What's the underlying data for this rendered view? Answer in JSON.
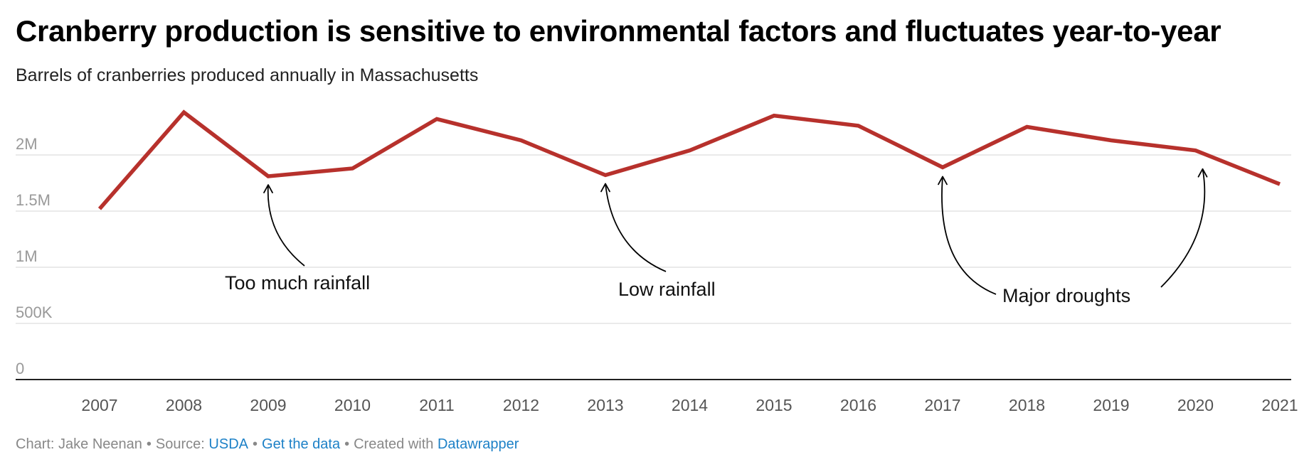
{
  "header": {
    "title": "Cranberry production is sensitive to environmental factors and fluctuates year-to-year",
    "subtitle": "Barrels of cranberries produced annually in Massachusetts"
  },
  "footer": {
    "chart_prefix": "Chart: ",
    "author": "Jake Neenan",
    "source_prefix": "Source:",
    "source_link": "USDA",
    "separator": "•",
    "data_link": "Get the data",
    "created_prefix": "Created with",
    "tool_link": "Datawrapper"
  },
  "colors": {
    "line": "#b7312c",
    "gridline": "#e4e4e4",
    "axis": "#222222",
    "tick_label": "#999999",
    "x_label": "#555555",
    "link": "#1d81c7"
  },
  "chart_data": {
    "type": "line",
    "x": [
      "2007",
      "2008",
      "2009",
      "2010",
      "2011",
      "2012",
      "2013",
      "2014",
      "2015",
      "2016",
      "2017",
      "2018",
      "2019",
      "2020",
      "2021"
    ],
    "series": [
      {
        "values": [
          1520000,
          2380000,
          1810000,
          1880000,
          2320000,
          2130000,
          1820000,
          2040000,
          2350000,
          2260000,
          1890000,
          2250000,
          2130000,
          2040000,
          1740000
        ]
      }
    ],
    "ylim": [
      0,
      2500000
    ],
    "yticks": [
      0,
      500000,
      1000000,
      1500000,
      2000000
    ],
    "ytick_labels": [
      "0",
      "500K",
      "1M",
      "1.5M",
      "2M"
    ],
    "grid": true,
    "annotations": [
      {
        "text": "Too much rainfall",
        "targets": [
          "2009"
        ]
      },
      {
        "text": "Low rainfall",
        "targets": [
          "2013"
        ]
      },
      {
        "text": "Major droughts",
        "targets": [
          "2017",
          "2020"
        ]
      }
    ]
  }
}
